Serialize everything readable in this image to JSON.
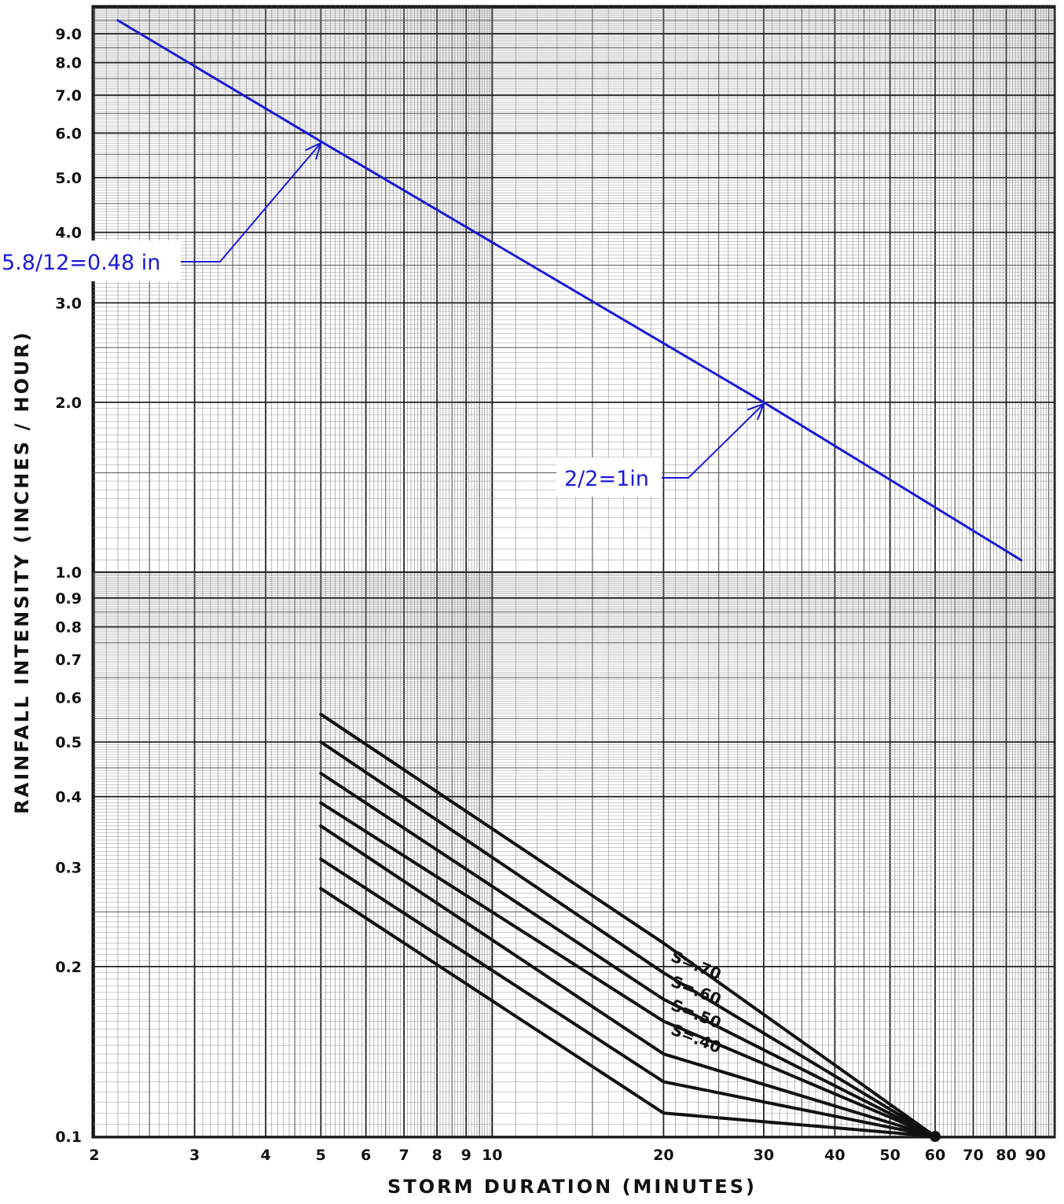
{
  "chart_data": {
    "type": "line",
    "title": "",
    "xlabel": "STORM DURATION (MINUTES)",
    "ylabel": "RAINFALL INTENSITY (INCHES / HOUR)",
    "x_scale": "log",
    "y_scale": "log",
    "xlim": [
      2,
      100
    ],
    "ylim": [
      0.1,
      10
    ],
    "grid": true,
    "x_ticks": [
      2,
      3,
      4,
      5,
      6,
      7,
      8,
      9,
      10,
      20,
      30,
      40,
      50,
      60,
      70,
      80,
      90
    ],
    "x_tick_labels": [
      "2",
      "3",
      "4",
      "5",
      "6",
      "7",
      "8",
      "9",
      "10",
      "20",
      "30",
      "40",
      "50",
      "60",
      "70",
      "80",
      "90"
    ],
    "y_ticks": [
      9.0,
      8.0,
      7.0,
      6.0,
      5.0,
      4.0,
      3.0,
      2.0,
      1.0,
      0.9,
      0.8,
      0.7,
      0.6,
      0.5,
      0.4,
      0.3,
      0.2,
      0.1
    ],
    "y_tick_labels": [
      "9.0",
      "8.0",
      "7.0",
      "6.0",
      "5.0",
      "4.0",
      "3.0",
      "2.0",
      "1.0",
      "0.9",
      "0.8",
      "0.7",
      "0.6",
      "0.5",
      "0.4",
      "0.3",
      "0.2",
      "0.1"
    ],
    "series": [
      {
        "color": "#1a1ad6",
        "x": [
          2.2,
          5,
          30,
          85
        ],
        "y": [
          9.5,
          5.8,
          2.0,
          1.05
        ]
      },
      {
        "color": "#111111",
        "x": [
          5,
          20,
          60
        ],
        "y": [
          0.56,
          0.22,
          0.1
        ]
      },
      {
        "color": "#111111",
        "x": [
          5,
          20,
          60
        ],
        "y": [
          0.5,
          0.195,
          0.1
        ]
      },
      {
        "color": "#111111",
        "x": [
          5,
          20,
          60
        ],
        "y": [
          0.44,
          0.175,
          0.1
        ]
      },
      {
        "color": "#111111",
        "x": [
          5,
          20,
          60
        ],
        "y": [
          0.39,
          0.16,
          0.1
        ]
      },
      {
        "color": "#111111",
        "x": [
          5,
          20,
          60
        ],
        "y": [
          0.355,
          0.14,
          0.1
        ]
      },
      {
        "color": "#111111",
        "x": [
          5,
          20,
          60
        ],
        "y": [
          0.31,
          0.125,
          0.1
        ]
      },
      {
        "color": "#111111",
        "x": [
          5,
          20,
          60
        ],
        "y": [
          0.275,
          0.11,
          0.1
        ]
      }
    ],
    "curve_labels": [
      "S=.70",
      "S=.60",
      "S=.50",
      "S=.40"
    ],
    "annotations": [
      {
        "text": "5.8/12=0.48 in",
        "target_x": 5,
        "target_y": 5.8
      },
      {
        "text": "2/2=1in",
        "target_x": 30,
        "target_y": 2.0
      }
    ],
    "annotation_color": "#1a1ad6"
  }
}
